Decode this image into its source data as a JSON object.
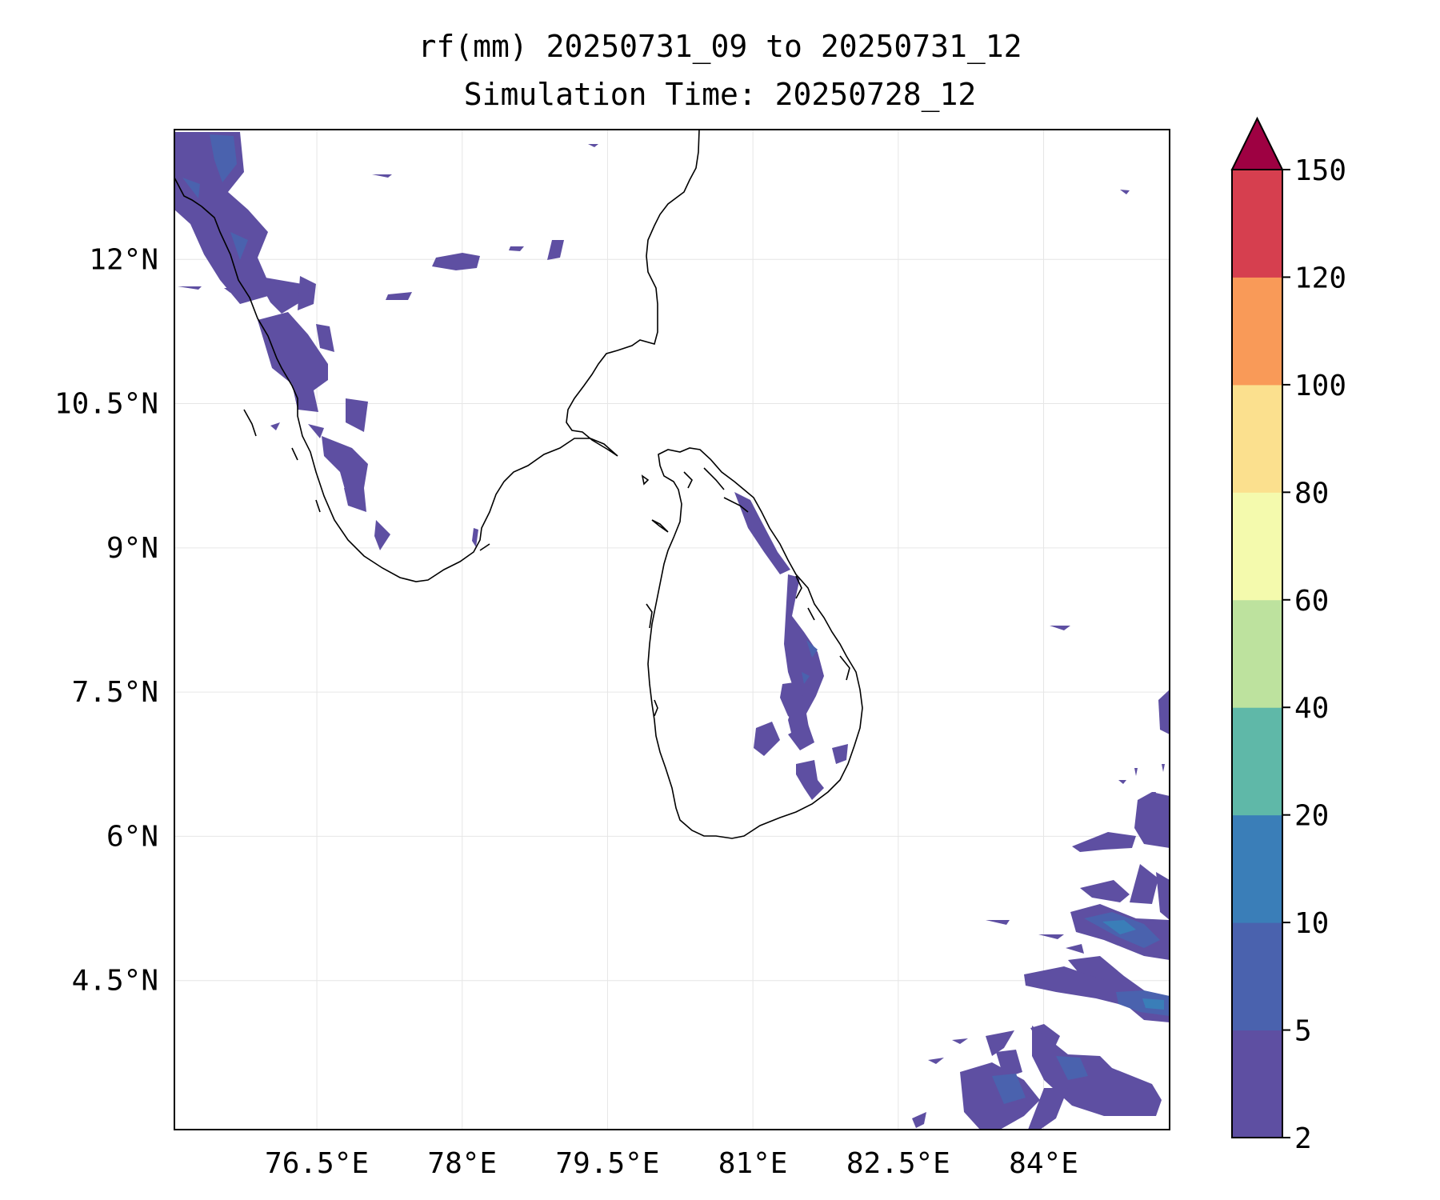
{
  "title": "rf(mm) 20250731_09 to 20250731_12",
  "subtitle": "Simulation Time: 20250728_12",
  "map": {
    "lon_range": [
      75.03,
      85.3
    ],
    "lat_range": [
      2.95,
      13.35
    ],
    "xticks": [
      {
        "value": 76.5,
        "label": "76.5°E"
      },
      {
        "value": 78.0,
        "label": "78°E"
      },
      {
        "value": 79.5,
        "label": "79.5°E"
      },
      {
        "value": 81.0,
        "label": "81°E"
      },
      {
        "value": 82.5,
        "label": "82.5°E"
      },
      {
        "value": 84.0,
        "label": "84°E"
      }
    ],
    "yticks": [
      {
        "value": 12.0,
        "label": "12°N"
      },
      {
        "value": 10.5,
        "label": "10.5°N"
      },
      {
        "value": 9.0,
        "label": "9°N"
      },
      {
        "value": 7.5,
        "label": "7.5°N"
      },
      {
        "value": 6.0,
        "label": "6°N"
      },
      {
        "value": 4.5,
        "label": "4.5°N"
      }
    ],
    "gridlines": true
  },
  "colorbar": {
    "levels": [
      "2",
      "5",
      "10",
      "20",
      "40",
      "60",
      "80",
      "100",
      "120",
      "150"
    ],
    "colors": [
      "#5e4fa2",
      "#4a62ae",
      "#3a7eb8",
      "#5fb8a8",
      "#bde29e",
      "#f4faad",
      "#fbe08e",
      "#f99a58",
      "#d63f4f"
    ],
    "extend_color": "#9e0142",
    "extend": "max"
  }
}
